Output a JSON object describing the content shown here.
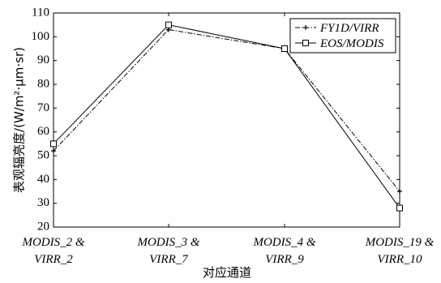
{
  "chart_data": {
    "type": "line",
    "ylabel": "表观辐亮度/(W/m²·μm·sr)",
    "xlabel": "对应通道",
    "ylim": [
      20,
      110
    ],
    "yticks": [
      "20",
      "30",
      "40",
      "50",
      "60",
      "70",
      "80",
      "90",
      "100",
      "110"
    ],
    "categories": [
      [
        "MODIS_2 &",
        "VIRR_2"
      ],
      [
        "MODIS_3 &",
        "VIRR_7"
      ],
      [
        "MODIS_4 &",
        "VIRR_9"
      ],
      [
        "MODIS_19 &",
        "VIRR_10"
      ]
    ],
    "legend_position": "top-right",
    "grid": false,
    "series": [
      {
        "name": "FY1D/VIRR",
        "values": [
          52,
          103,
          95,
          35
        ],
        "style": "dash-dot",
        "marker": "plus",
        "color": "#000000"
      },
      {
        "name": "EOS/MODIS",
        "values": [
          55,
          105,
          95,
          28
        ],
        "style": "solid",
        "marker": "square",
        "color": "#000000"
      }
    ]
  }
}
